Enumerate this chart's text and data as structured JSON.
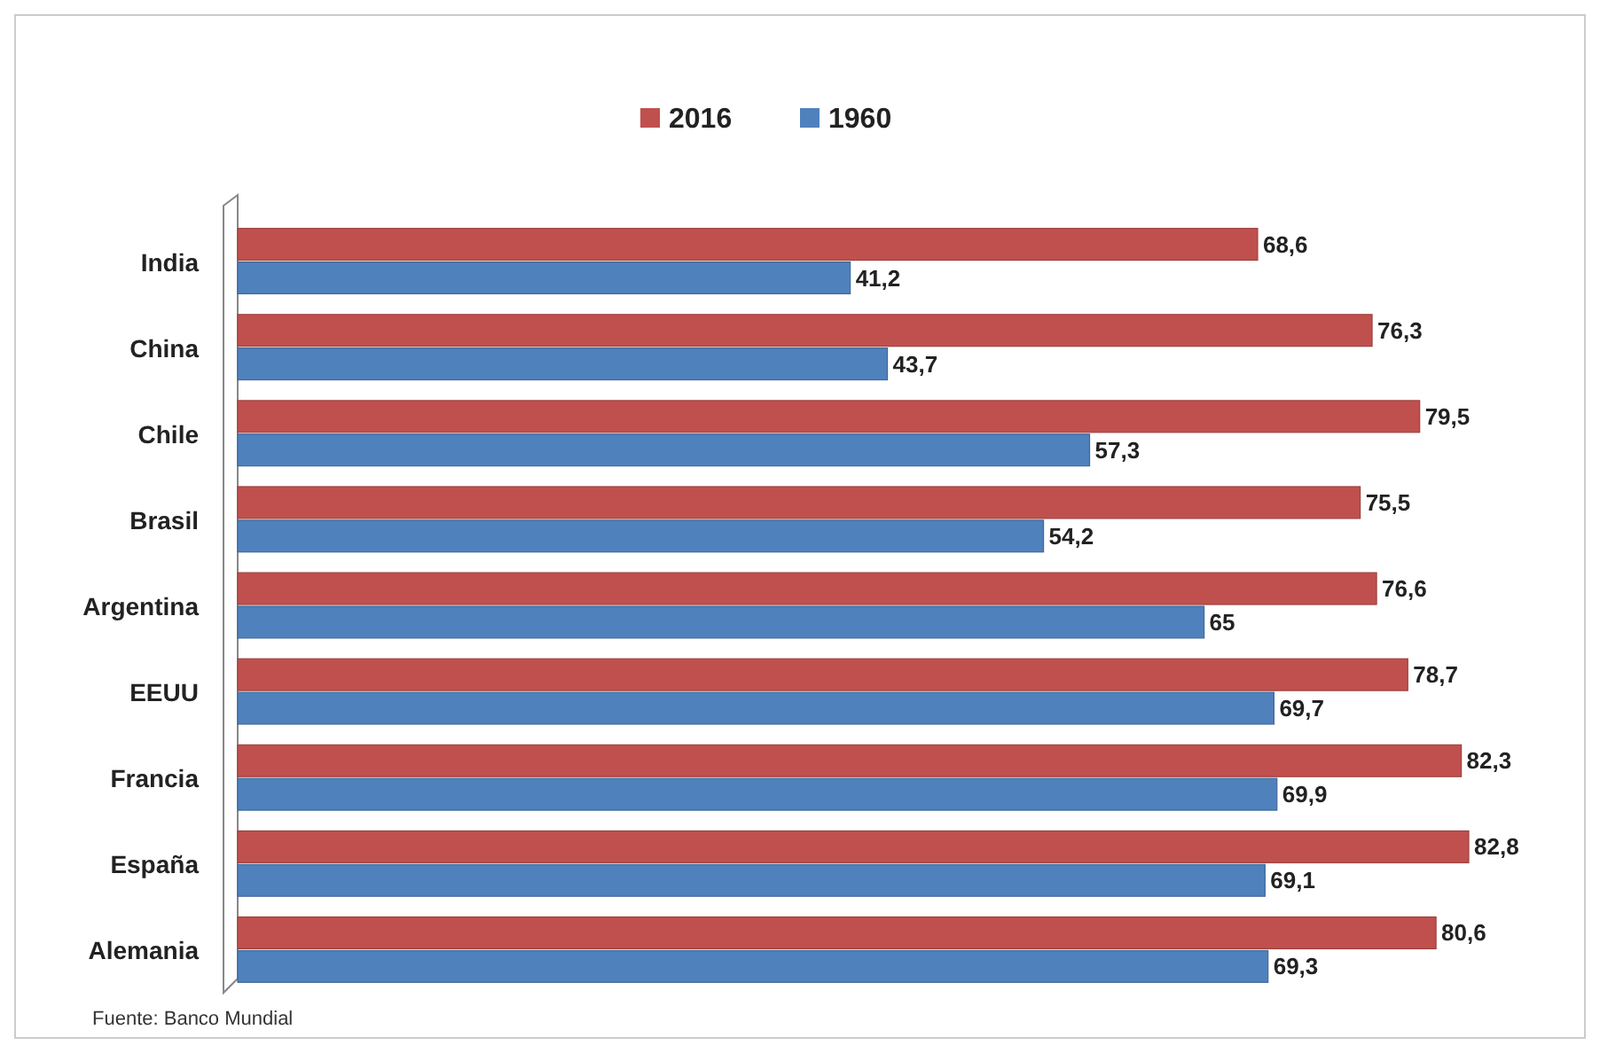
{
  "chart_data": {
    "type": "bar",
    "orientation": "horizontal",
    "categories": [
      "India",
      "China",
      "Chile",
      "Brasil",
      "Argentina",
      "EEUU",
      "Francia",
      "España",
      "Alemania"
    ],
    "series": [
      {
        "name": "2016",
        "color": "#c0504d",
        "values": [
          68.6,
          76.3,
          79.5,
          75.5,
          76.6,
          78.7,
          82.3,
          82.8,
          80.6
        ],
        "value_labels": [
          "68,6",
          "76,3",
          "79,5",
          "75,5",
          "76,6",
          "78,7",
          "82,3",
          "82,8",
          "80,6"
        ]
      },
      {
        "name": "1960",
        "color": "#4f81bd",
        "values": [
          41.2,
          43.7,
          57.3,
          54.2,
          65,
          69.7,
          69.9,
          69.1,
          69.3
        ],
        "value_labels": [
          "41,2",
          "43,7",
          "57,3",
          "54,2",
          "65",
          "69,7",
          "69,9",
          "69,1",
          "69,3"
        ]
      }
    ],
    "tick_labels": "y",
    "legend": "top",
    "annotations": [
      "Fuente: Banco Mundial"
    ]
  }
}
